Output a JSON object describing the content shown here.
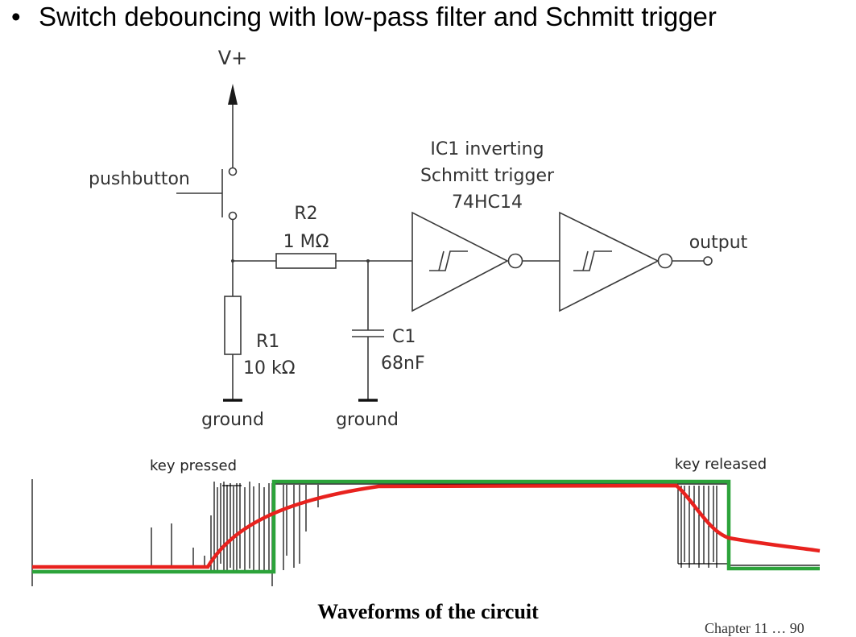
{
  "bullet": {
    "symbol": "•",
    "text": "Switch debouncing with low-pass filter and Schmitt trigger"
  },
  "circuit": {
    "supply": "V+",
    "pushbutton": "pushbutton",
    "r2_name": "R2",
    "r2_value": "1 MΩ",
    "r1_name": "R1",
    "r1_value": "10 kΩ",
    "c1_name": "C1",
    "c1_value": "68nF",
    "ground_left": "ground",
    "ground_mid": "ground",
    "ic_line1": "IC1 inverting",
    "ic_line2": "Schmitt trigger",
    "ic_line3": "74HC14",
    "output": "output"
  },
  "waveform": {
    "key_pressed": "key pressed",
    "key_released": "key released",
    "colors": {
      "filtered": "#e8221e",
      "output": "#2ca33a",
      "raw": "#000000"
    }
  },
  "caption": "Waveforms of the circuit",
  "footer": "Chapter 11 … 90"
}
